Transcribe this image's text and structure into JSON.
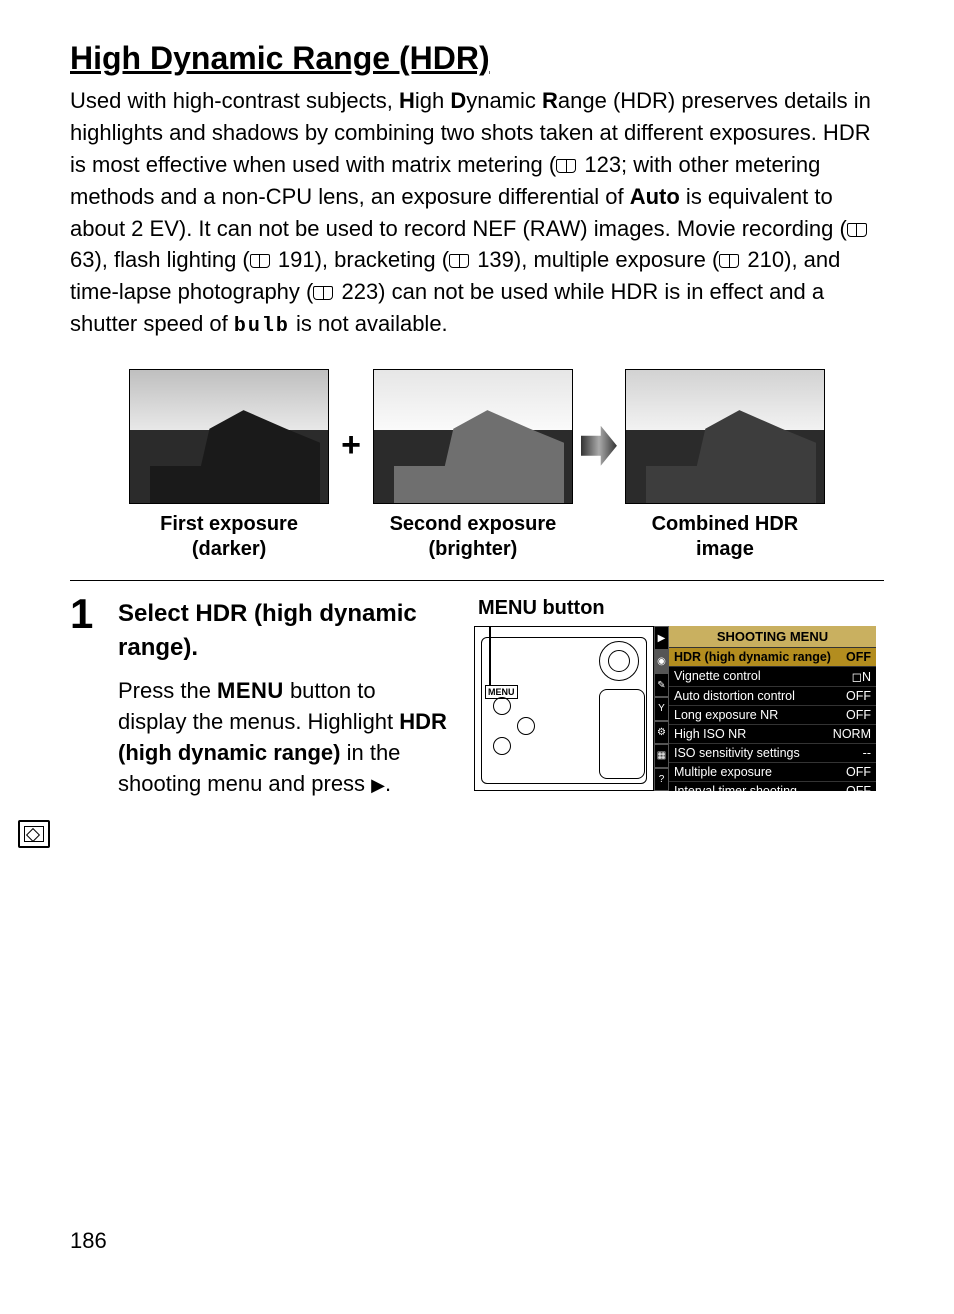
{
  "title": "High Dynamic Range (HDR)",
  "intro": {
    "pre1": "Used with high-contrast subjects, ",
    "h": "H",
    "igh": "igh ",
    "d": "D",
    "ynamic": "ynamic ",
    "r": "R",
    "ange": "ange (HDR) preserves details in highlights and shadows by combining two shots taken at different exposures.  HDR is most effective when used with matrix metering (",
    "ref1": " 123; with other metering methods and a non-CPU lens, an exposure differential of ",
    "auto": "Auto",
    "post_auto": " is equivalent to about 2 EV).  It can not be used to record NEF (RAW) images. Movie recording (",
    "ref2": " 63), flash lighting (",
    "ref3": " 191), bracketing (",
    "ref4": " 139), multiple exposure (",
    "ref5": " 210), and time-lapse photography (",
    "ref6": " 223) can not be used while HDR is in effect and a shutter speed of ",
    "bulb": "bulb",
    "tail": " is not available."
  },
  "examples": {
    "c1a": "First exposure",
    "c1b": "(darker)",
    "plus": "+",
    "c2a": "Second exposure",
    "c2b": "(brighter)",
    "c3a": "Combined HDR",
    "c3b": "image"
  },
  "step": {
    "num": "1",
    "heading_pre": "Select ",
    "heading_bold": "HDR (high dynamic range)",
    "heading_post": ".",
    "body_pre": "Press the ",
    "menu_word": "MENU",
    "body_mid": " button to display the menus. Highlight ",
    "body_bold": "HDR (high dynamic range)",
    "body_post": " in the shooting menu and press ",
    "body_end": "."
  },
  "figure_label": "MENU button",
  "lcd": {
    "header": "SHOOTING MENU",
    "tabs": [
      "▶",
      "◉",
      "✎",
      "Y",
      "⚙",
      "▦",
      "?"
    ],
    "rows": [
      {
        "label": "HDR (high dynamic range)",
        "value": "OFF",
        "selected": true
      },
      {
        "label": "Vignette control",
        "value": "◻N",
        "selected": false
      },
      {
        "label": "Auto distortion control",
        "value": "OFF",
        "selected": false
      },
      {
        "label": "Long exposure NR",
        "value": "OFF",
        "selected": false
      },
      {
        "label": "High ISO NR",
        "value": "NORM",
        "selected": false
      },
      {
        "label": "ISO sensitivity settings",
        "value": "--",
        "selected": false
      },
      {
        "label": "Multiple exposure",
        "value": "OFF",
        "selected": false
      },
      {
        "label": "Interval timer shooting",
        "value": "OFF",
        "selected": false
      }
    ]
  },
  "page_number": "186"
}
